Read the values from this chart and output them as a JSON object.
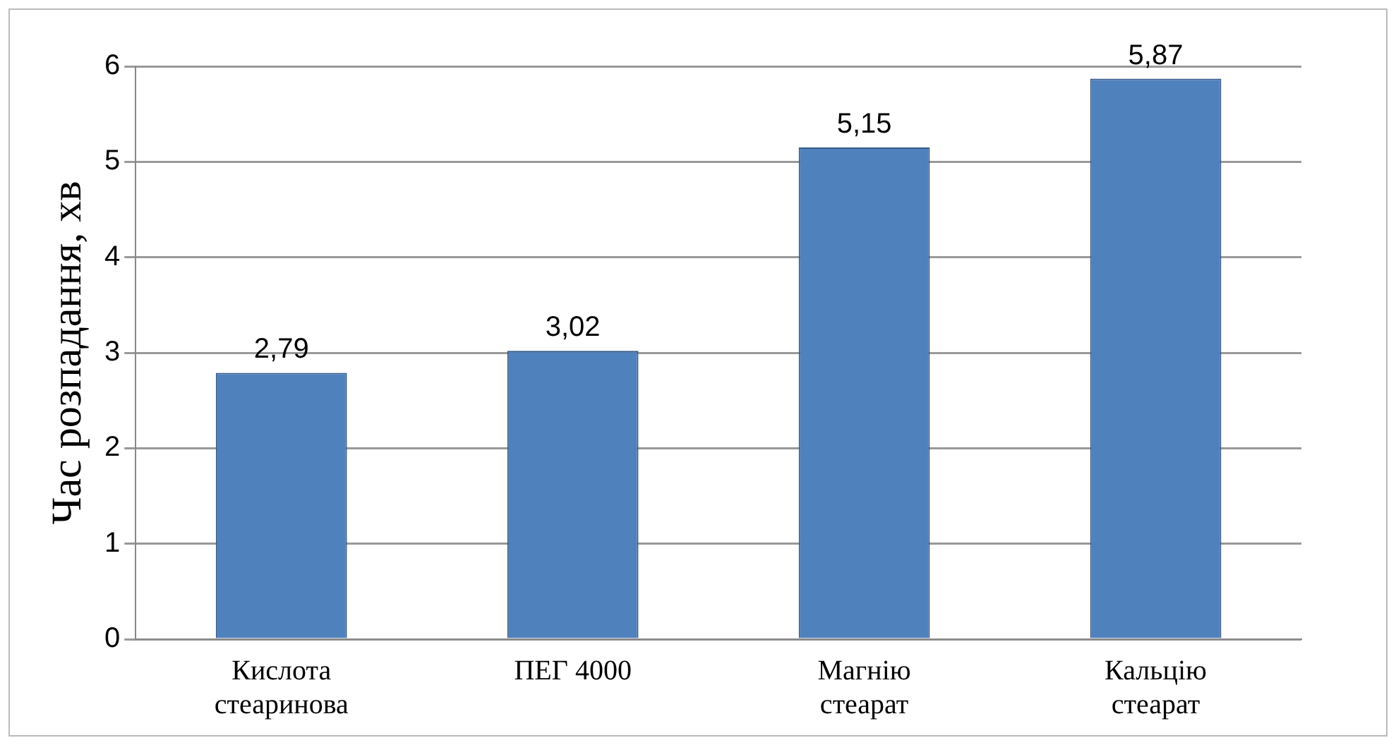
{
  "chart_data": {
    "type": "bar",
    "ylabel": "Час розпадання, хв",
    "categories": [
      "Кислота стеаринова",
      "ПЕГ 4000",
      "Магнію стеарат",
      "Кальцію стеарат"
    ],
    "values": [
      2.79,
      3.02,
      5.15,
      5.87
    ],
    "color": "#4f81bd",
    "value_labels": [
      "2,79",
      "3,02",
      "5,15",
      "5,87"
    ],
    "ylim": [
      0,
      6
    ],
    "yticks": [
      0,
      1,
      2,
      3,
      4,
      5,
      6
    ],
    "grid": "y"
  }
}
